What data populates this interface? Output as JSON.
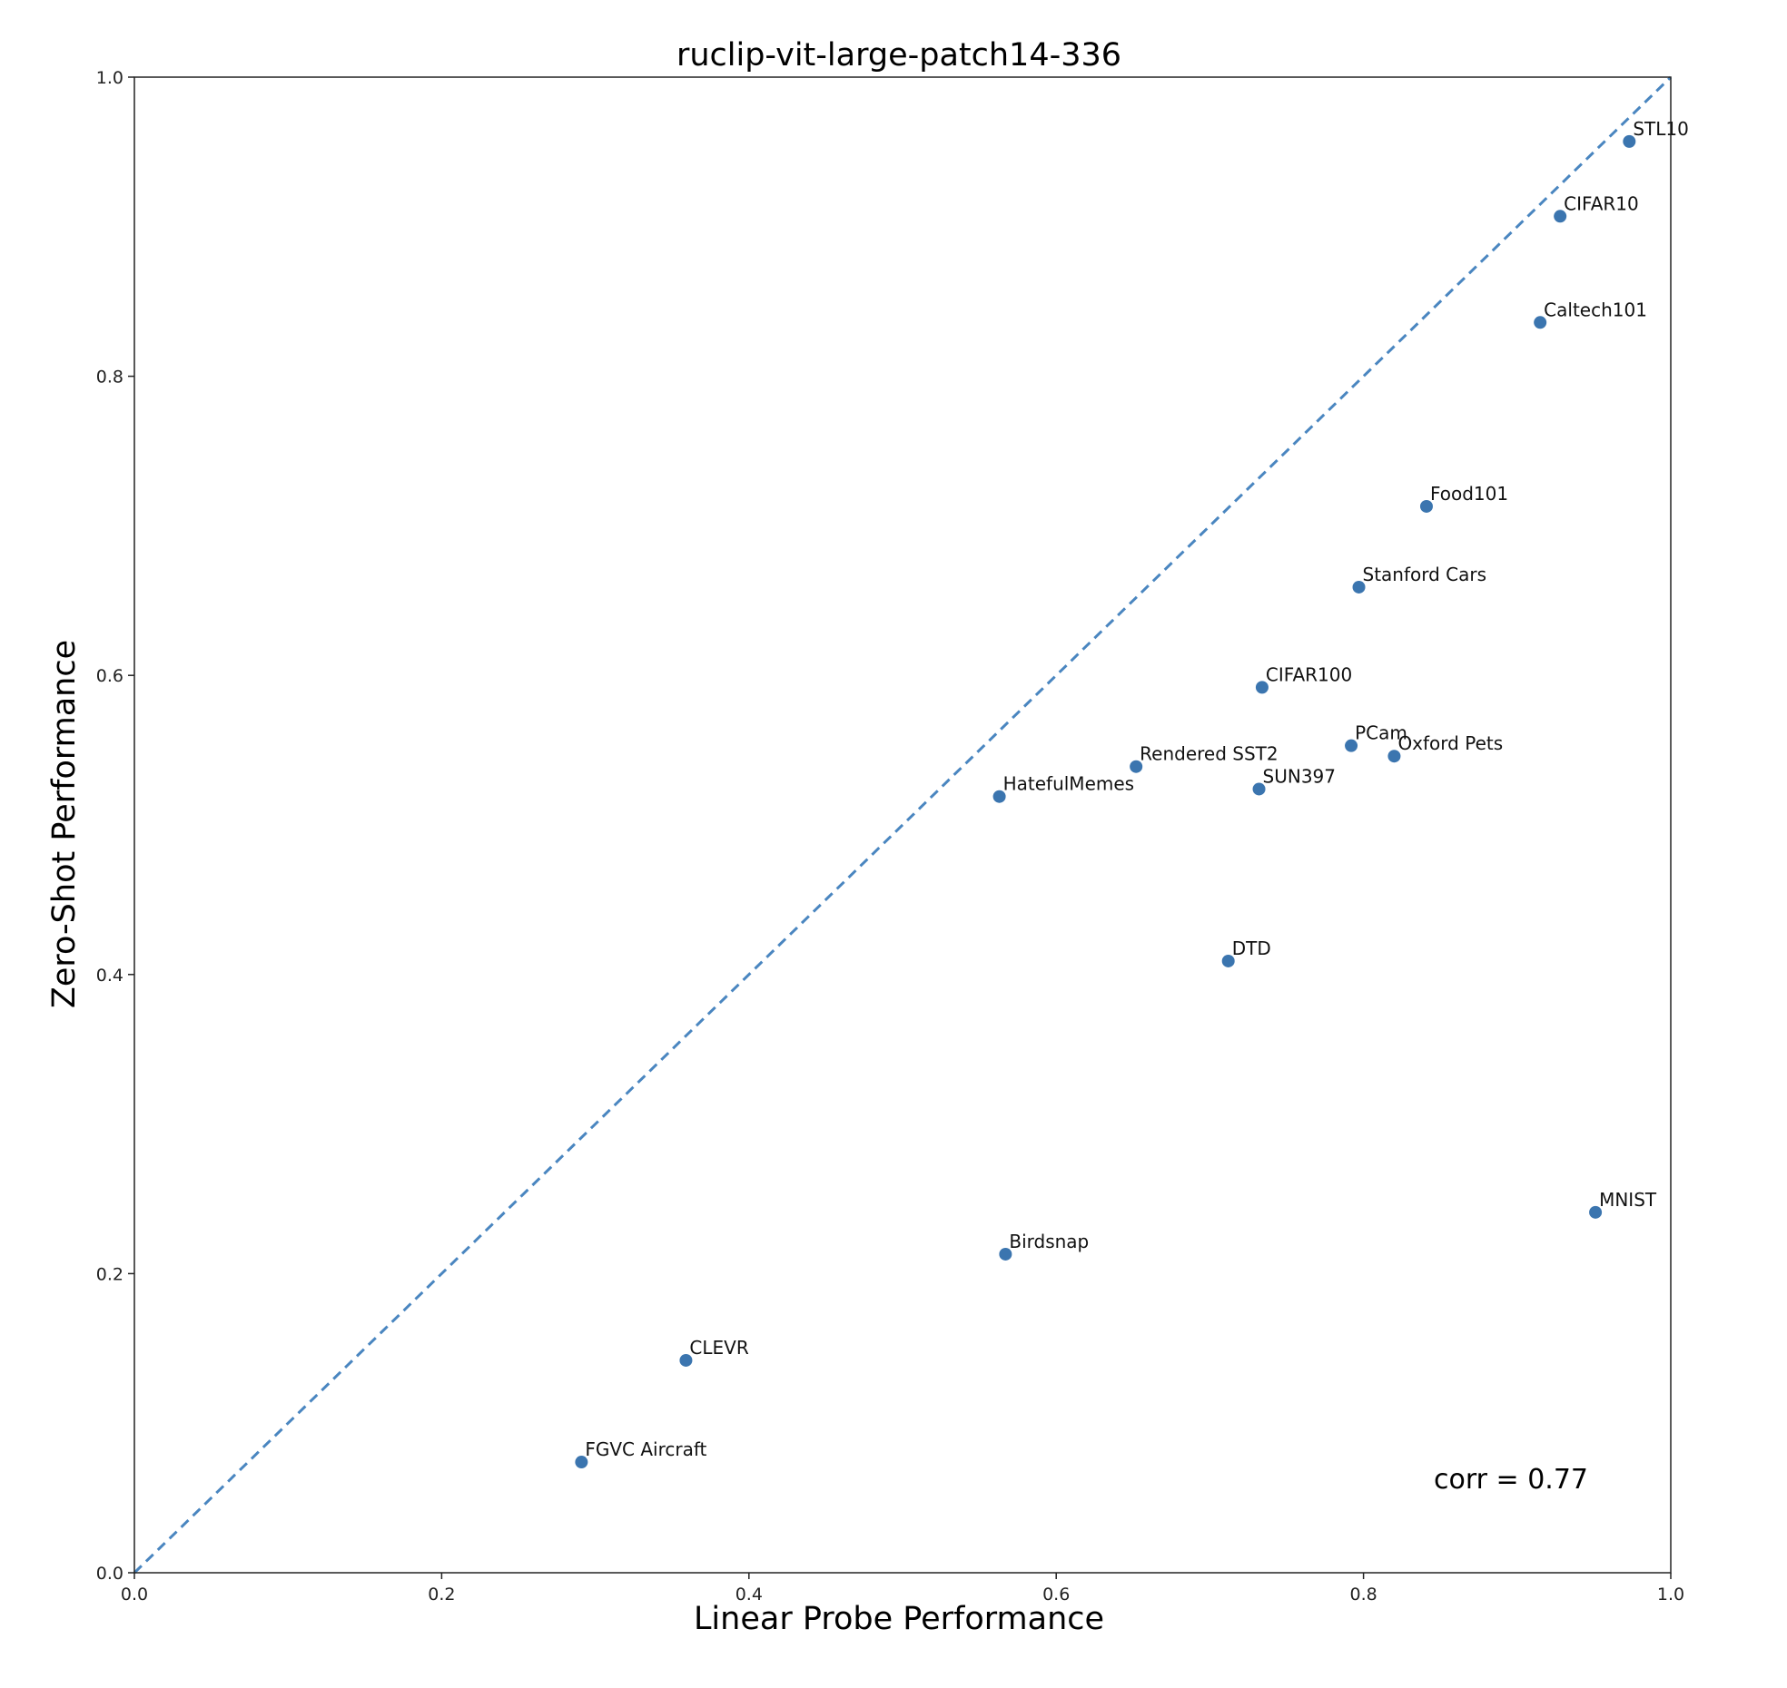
{
  "chart_data": {
    "type": "scatter",
    "title": "ruclip-vit-large-patch14-336",
    "xlabel": "Linear Probe Performance",
    "ylabel": "Zero-Shot Performance",
    "xlim": [
      0.0,
      1.0
    ],
    "ylim": [
      0.0,
      1.0
    ],
    "xticks": [
      "0.0",
      "0.2",
      "0.4",
      "0.6",
      "0.8",
      "1.0"
    ],
    "yticks": [
      "0.0",
      "0.2",
      "0.4",
      "0.6",
      "0.8",
      "1.0"
    ],
    "grid": false,
    "reference_line": "y = x",
    "point_color": "#3b75af",
    "line_color": "#4a86c0",
    "annotation": "corr = 0.77",
    "points": [
      {
        "label": "STL10",
        "x": 0.973,
        "y": 0.957
      },
      {
        "label": "CIFAR10",
        "x": 0.928,
        "y": 0.907
      },
      {
        "label": "Caltech101",
        "x": 0.915,
        "y": 0.836
      },
      {
        "label": "Food101",
        "x": 0.841,
        "y": 0.713
      },
      {
        "label": "Stanford Cars",
        "x": 0.797,
        "y": 0.659
      },
      {
        "label": "CIFAR100",
        "x": 0.734,
        "y": 0.592
      },
      {
        "label": "PCam",
        "x": 0.792,
        "y": 0.553
      },
      {
        "label": "Oxford Pets",
        "x": 0.82,
        "y": 0.546
      },
      {
        "label": "Rendered SST2",
        "x": 0.652,
        "y": 0.539
      },
      {
        "label": "SUN397",
        "x": 0.732,
        "y": 0.524
      },
      {
        "label": "HatefulMemes",
        "x": 0.563,
        "y": 0.519
      },
      {
        "label": "DTD",
        "x": 0.712,
        "y": 0.409
      },
      {
        "label": "MNIST",
        "x": 0.951,
        "y": 0.241
      },
      {
        "label": "Birdsnap",
        "x": 0.567,
        "y": 0.213
      },
      {
        "label": "CLEVR",
        "x": 0.359,
        "y": 0.142
      },
      {
        "label": "FGVC Aircraft",
        "x": 0.291,
        "y": 0.074
      }
    ]
  }
}
